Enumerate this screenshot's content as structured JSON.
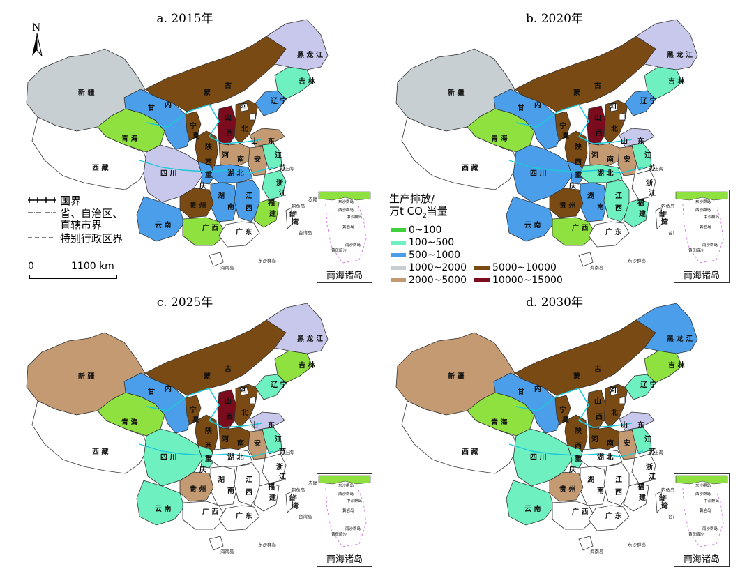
{
  "panels": [
    {
      "id": "a",
      "title": "a. 2015年",
      "fill": {
        "xj": "#c8cfd3",
        "xz": "#ffffff",
        "qh": "#8ee13f",
        "gs": "#4a9eea",
        "nm": "#7a4a14",
        "nx": "#7a4a14",
        "sx1": "#7a4a14",
        "sx2": "#7a0c1e",
        "hb": "#7a4a14",
        "bj": "#ffffff",
        "tj": "#ffffff",
        "ln": "#4a9eea",
        "jl": "#6ef0c0",
        "hl": "#c8c8ec",
        "sd": "#c49a72",
        "hn": "#c49a72",
        "ah": "#c49a72",
        "js": "#6ef0c0",
        "sc": "#c8c8ec",
        "cq": "#4a9eea",
        "hub": "#4a9eea",
        "hun": "#4a9eea",
        "jx": "#4a9eea",
        "zj": "#6ef0c0",
        "fj": "#8ee13f",
        "gz": "#7a4a14",
        "yn": "#4a9eea",
        "gx": "#8ee13f",
        "gd": "#ffffff",
        "hi": "#ffffff",
        "tw": "#ffffff"
      }
    },
    {
      "id": "b",
      "title": "b. 2020年",
      "fill": {
        "xj": "#c8cfd3",
        "xz": "#ffffff",
        "qh": "#8ee13f",
        "gs": "#4a9eea",
        "nm": "#7a4a14",
        "nx": "#7a4a14",
        "sx1": "#7a4a14",
        "sx2": "#7a0c1e",
        "hb": "#7a4a14",
        "bj": "#ffffff",
        "tj": "#ffffff",
        "ln": "#4a9eea",
        "jl": "#6ef0c0",
        "hl": "#c8c8ec",
        "sd": "#c8c8ec",
        "hn": "#c49a72",
        "ah": "#c49a72",
        "js": "#6ef0c0",
        "sc": "#4a9eea",
        "cq": "#4a9eea",
        "hub": "#6ef0c0",
        "hun": "#4a9eea",
        "jx": "#6ef0c0",
        "zj": "#ffffff",
        "fj": "#6ef0c0",
        "gz": "#7a4a14",
        "yn": "#4a9eea",
        "gx": "#8ee13f",
        "gd": "#ffffff",
        "hi": "#ffffff",
        "tw": "#ffffff"
      }
    },
    {
      "id": "c",
      "title": "c. 2025年",
      "fill": {
        "xj": "#c49a72",
        "xz": "#ffffff",
        "qh": "#8ee13f",
        "gs": "#4a9eea",
        "nm": "#7a4a14",
        "nx": "#7a4a14",
        "sx1": "#7a4a14",
        "sx2": "#7a0c1e",
        "hb": "#7a4a14",
        "bj": "#ffffff",
        "tj": "#ffffff",
        "ln": "#6ef0c0",
        "jl": "#8ee13f",
        "hl": "#c8c8ec",
        "sd": "#c8c8ec",
        "hn": "#7a4a14",
        "ah": "#c49a72",
        "js": "#6ef0c0",
        "sc": "#6ef0c0",
        "cq": "#6ef0c0",
        "hub": "#ffffff",
        "hun": "#ffffff",
        "jx": "#ffffff",
        "zj": "#ffffff",
        "fj": "#ffffff",
        "gz": "#c49a72",
        "yn": "#6ef0c0",
        "gx": "#ffffff",
        "gd": "#ffffff",
        "hi": "#ffffff",
        "tw": "#ffffff"
      }
    },
    {
      "id": "d",
      "title": "d. 2030年",
      "fill": {
        "xj": "#c49a72",
        "xz": "#ffffff",
        "qh": "#8ee13f",
        "gs": "#4a9eea",
        "nm": "#7a4a14",
        "nx": "#7a4a14",
        "sx1": "#7a4a14",
        "sx2": "#7a4a14",
        "hb": "#7a4a14",
        "bj": "#ffffff",
        "tj": "#ffffff",
        "ln": "#6ef0c0",
        "jl": "#8ee13f",
        "hl": "#4a9eea",
        "sd": "#c8c8ec",
        "hn": "#7a4a14",
        "ah": "#c49a72",
        "js": "#6ef0c0",
        "sc": "#6ef0c0",
        "cq": "#6ef0c0",
        "hub": "#ffffff",
        "hun": "#ffffff",
        "jx": "#ffffff",
        "zj": "#ffffff",
        "fj": "#ffffff",
        "gz": "#c49a72",
        "yn": "#6ef0c0",
        "gx": "#ffffff",
        "gd": "#ffffff",
        "hi": "#ffffff",
        "tw": "#ffffff"
      }
    }
  ],
  "province_labels": {
    "xj": "新  疆",
    "xz": "西      藏",
    "qh": "青  海",
    "gs": "甘",
    "nm1": "内",
    "nm2": "蒙",
    "nm3": "古",
    "nx1": "宁",
    "nx2": "夏",
    "sx1a": "陕",
    "sx1b": "西",
    "sx2a": "山",
    "sx2b": "西",
    "hb1": "河",
    "hb2": "北",
    "ln": "辽  宁",
    "jl": "吉  林",
    "hl": "黑 龙 江",
    "sd1": "山",
    "sd2": "东",
    "hn1": "河",
    "hn2": "南",
    "ah": "安",
    "js": "江",
    "su": "苏",
    "sc": "四  川",
    "cq": "重",
    "cq2": "庆",
    "hub": "湖  北",
    "hun": "湖",
    "hun2": "南",
    "jx1": "江",
    "jx2": "西",
    "zj1": "浙",
    "zj2": "江",
    "fj1": "福",
    "fj2": "建",
    "gz": "贵 州",
    "yn": "云  南",
    "gx": "广  西",
    "gd": "广  东",
    "hi": "海南岛",
    "tw1": "台",
    "tw2": "湾",
    "twd": "台湾岛",
    "shanghai": "上海",
    "diaoyu": "钓鱼岛",
    "chiwei": "赤尾屿",
    "dongsha": "东沙群岛",
    "qing": "青"
  },
  "inset": {
    "label": "南海诸岛",
    "small_labels": [
      "东沙群岛",
      "西沙群岛",
      "中沙群岛",
      "黄岩岛",
      "南沙群岛",
      "曾母暗沙"
    ]
  },
  "compass": {
    "letter": "N"
  },
  "border_legend": {
    "national": "国界",
    "provincial_line1": "省、自治区、",
    "provincial_line2": "直辖市界",
    "sar": "特别行政区界"
  },
  "scalebar": {
    "start": "0",
    "end": "1100 km"
  },
  "color_legend": {
    "title_line1": "生产排放/",
    "title_line2_pre": "万t CO",
    "title_line2_sub": "2",
    "title_line2_post": "当量",
    "items": [
      {
        "label": "0~100",
        "color": "#3fd13a"
      },
      {
        "label": "100~500",
        "color": "#6ef0c0"
      },
      {
        "label": "500~1000",
        "color": "#4a9eea"
      },
      {
        "label": "1000~2000",
        "color": "#c8cfd3"
      },
      {
        "label": "2000~5000",
        "color": "#c49a72"
      },
      {
        "label": "5000~10000",
        "color": "#7a4a14"
      },
      {
        "label": "10000~15000",
        "color": "#7a0c1e"
      }
    ]
  }
}
